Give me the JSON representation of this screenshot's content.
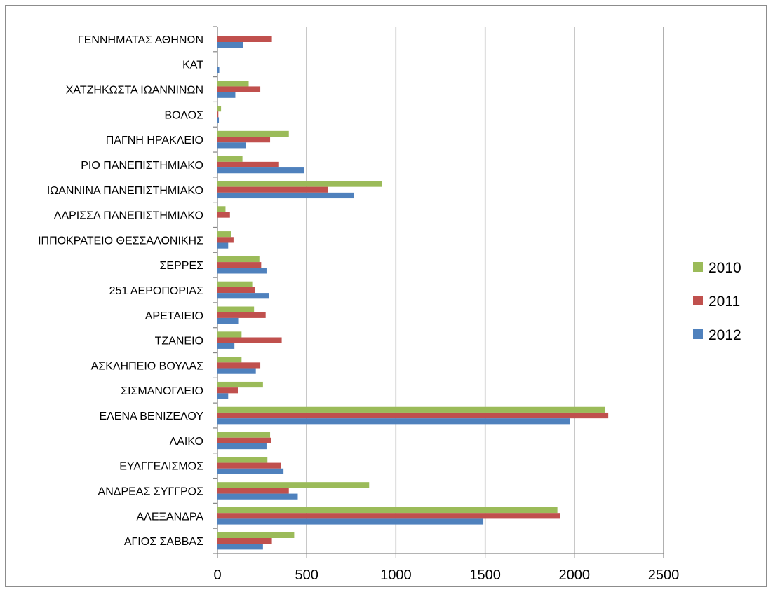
{
  "chart_data": {
    "type": "bar",
    "orientation": "horizontal",
    "title": "",
    "xlabel": "",
    "ylabel": "",
    "xlim": [
      0,
      2500
    ],
    "xticks": [
      0,
      500,
      1000,
      1500,
      2000,
      2500
    ],
    "grid": "vertical major gridlines",
    "legend_position": "right",
    "categories": [
      "ΓΕΝΝΗΜΑΤΑΣ ΑΘΗΝΩΝ",
      "ΚΑΤ",
      "ΧΑΤΖΗΚΩΣΤΑ ΙΩΑΝΝΙΝΩΝ",
      "ΒΟΛΟΣ",
      "ΠΑΓΝΗ ΗΡΑΚΛΕΙΟ",
      "ΡΙΟ ΠΑΝΕΠΙΣΤΗΜΙΑΚΟ",
      "ΙΩΑΝΝΙΝΑ ΠΑΝΕΠΙΣΤΗΜΙΑΚΟ",
      "ΛΑΡΙΣΣΑ ΠΑΝΕΠΙΣΤΗΜΙΑΚΟ",
      "ΙΠΠΟΚΡΑΤΕΙΟ ΘΕΣΣΑΛΟΝΙΚΗΣ",
      "ΣΕΡΡΕΣ",
      "251 ΑΕΡΟΠΟΡΙΑΣ",
      "ΑΡΕΤΑΙΕΙΟ",
      "ΤΖΑΝΕΙΟ",
      "ΑΣΚΛΗΠΕΙΟ ΒΟΥΛΑΣ",
      "ΣΙΣΜΑΝΟΓΛΕΙΟ",
      "ΕΛΕΝΑ ΒΕΝΙΖΕΛΟΥ",
      "ΛΑΙΚΟ",
      "ΕΥΑΓΓΕΛΙΣΜΟΣ",
      "ΑΝΔΡΕΑΣ ΣΥΓΓΡΟΣ",
      "ΑΛΕΞΑΝΔΡΑ",
      "ΑΓΙΟΣ ΣΑΒΒΑΣ"
    ],
    "series": [
      {
        "name": "2010",
        "color": "#9bbb59",
        "values": [
          0,
          0,
          175,
          20,
          400,
          140,
          920,
          45,
          75,
          235,
          195,
          205,
          135,
          135,
          255,
          2170,
          295,
          280,
          850,
          1905,
          430
        ]
      },
      {
        "name": "2011",
        "color": "#c0504d",
        "values": [
          305,
          0,
          240,
          5,
          295,
          345,
          620,
          70,
          90,
          245,
          210,
          270,
          360,
          240,
          115,
          2190,
          300,
          355,
          400,
          1920,
          305
        ]
      },
      {
        "name": "2012",
        "color": "#4f81bd",
        "values": [
          145,
          10,
          100,
          8,
          160,
          485,
          765,
          0,
          60,
          275,
          290,
          120,
          95,
          215,
          60,
          1975,
          275,
          370,
          450,
          1490,
          255
        ]
      }
    ]
  }
}
